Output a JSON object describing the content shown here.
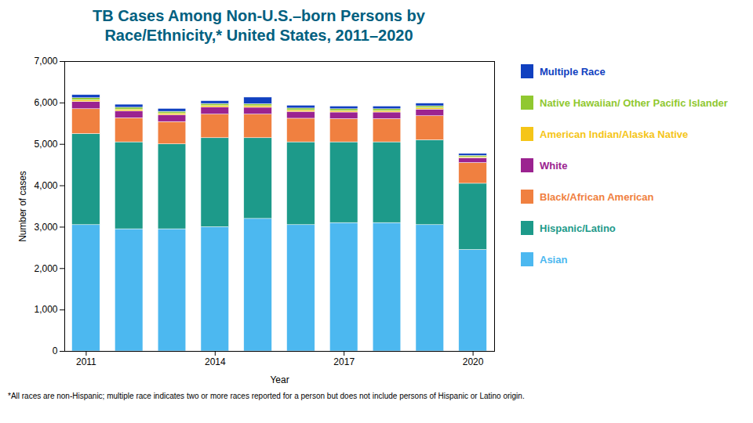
{
  "chart_data": {
    "type": "bar",
    "stacked": true,
    "title": "TB Cases Among Non-U.S.–born  Persons by",
    "subtitle": "Race/Ethnicity,* United States, 2011–2020",
    "xlabel": "Year",
    "ylabel": "Number of cases",
    "x": [
      2011,
      2012,
      2013,
      2014,
      2015,
      2016,
      2017,
      2018,
      2019,
      2020
    ],
    "series": [
      {
        "name": "Asian",
        "color": "#4CB8F0",
        "values": [
          3050,
          2950,
          2950,
          3000,
          3200,
          3050,
          3100,
          3100,
          3050,
          2450
        ]
      },
      {
        "name": "Hispanic/Latino",
        "color": "#1D9A8A",
        "values": [
          2200,
          2100,
          2050,
          2150,
          1950,
          2000,
          1950,
          1950,
          2050,
          1600
        ]
      },
      {
        "name": "Black/African American",
        "color": "#F08040",
        "values": [
          600,
          580,
          540,
          570,
          570,
          570,
          560,
          560,
          580,
          500
        ]
      },
      {
        "name": "White",
        "color": "#9B2390",
        "values": [
          175,
          170,
          165,
          170,
          165,
          165,
          160,
          160,
          160,
          115
        ]
      },
      {
        "name": "American Indian/Alaska Native",
        "color": "#F5C518",
        "values": [
          40,
          38,
          36,
          38,
          38,
          36,
          35,
          35,
          35,
          25
        ]
      },
      {
        "name": "Native Hawaiian/ Other Pacific Islander",
        "color": "#90C830",
        "values": [
          50,
          48,
          46,
          48,
          48,
          46,
          44,
          44,
          46,
          32
        ]
      },
      {
        "name": "Multiple Race",
        "color": "#1040C0",
        "values": [
          75,
          72,
          70,
          68,
          160,
          68,
          65,
          65,
          65,
          48
        ]
      }
    ],
    "xlim": [
      2010.5,
      2020.5
    ],
    "xticks": [
      2011,
      2014,
      2017,
      2020
    ],
    "ylim": [
      0,
      7000
    ],
    "yticks": [
      0,
      {
        "value": 1000,
        "label": "1,000"
      },
      {
        "value": 2000,
        "label": "2,000"
      },
      {
        "value": 3000,
        "label": "3,000"
      },
      {
        "value": 4000,
        "label": "4,000"
      },
      {
        "value": 5000,
        "label": "5,000"
      },
      {
        "value": 6000,
        "label": "6,000"
      },
      {
        "value": 7000,
        "label": "7,000"
      }
    ],
    "grid": false,
    "legend": "right",
    "annotations": [
      "*All races are non-Hispanic; multiple race indicates two or more races reported for a person but does not include persons of Hispanic or Latino origin."
    ]
  }
}
